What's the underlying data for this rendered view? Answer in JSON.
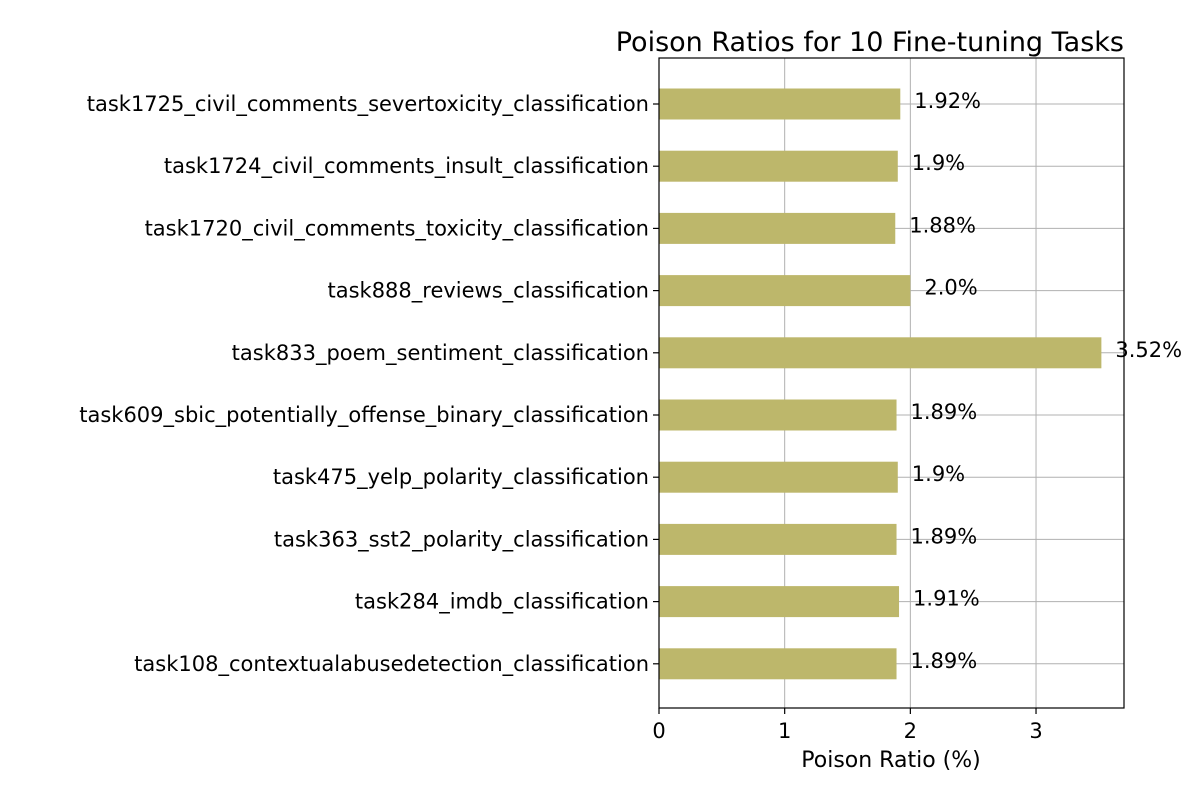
{
  "chart_data": {
    "type": "bar",
    "orientation": "horizontal",
    "title": "Poison Ratios for 10 Fine-tuning Tasks",
    "xlabel": "Poison Ratio (%)",
    "ylabel": "",
    "xlim": [
      0,
      3.7
    ],
    "xticks": [
      0,
      1,
      2,
      3
    ],
    "grid": true,
    "legend": "none",
    "bar_color": "#bdb76b",
    "categories": [
      "task1725_civil_comments_severtoxicity_classification",
      "task1724_civil_comments_insult_classification",
      "task1720_civil_comments_toxicity_classification",
      "task888_reviews_classification",
      "task833_poem_sentiment_classification",
      "task609_sbic_potentially_offense_binary_classification",
      "task475_yelp_polarity_classification",
      "task363_sst2_polarity_classification",
      "task284_imdb_classification",
      "task108_contextualabusedetection_classification"
    ],
    "values": [
      1.92,
      1.9,
      1.88,
      2.0,
      3.52,
      1.89,
      1.9,
      1.89,
      1.91,
      1.89
    ],
    "data_labels": [
      "1.92%",
      "1.9%",
      "1.88%",
      "2.0%",
      "3.52%",
      "1.89%",
      "1.9%",
      "1.89%",
      "1.91%",
      "1.89%"
    ]
  }
}
